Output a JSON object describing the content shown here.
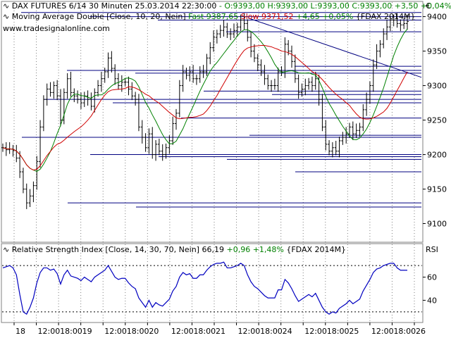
{
  "header": {
    "instrument": "DAX FUTURES 6/14 30 Minuten",
    "datetime": "25.03.2014 22:30:00",
    "ohlc": "- O:9393,00 H:9393,00 L:9393,00",
    "close_change": "C:9393,00 +3,50 +0,04%",
    "ma_title": "Moving Average Double [Close, 10, 20, Nein]",
    "ma_fast": "Fast 9387,65",
    "ma_slow": "Slow 9371,52",
    "ma_change": "+4,65 +0,05%",
    "ma_symbol": "{FDAX 2014M}",
    "website": "www.tradesignalonline.com",
    "currency": "€"
  },
  "rsi_header": {
    "title": "Relative Strength Index [Close, 14, 30, 70, Nein]",
    "value": "66,19",
    "change": "+0,96 +1,48%",
    "symbol": "{FDAX 2014M}",
    "axis_label": "RSI"
  },
  "colors": {
    "price": "#000000",
    "fast_ma": "#008000",
    "slow_ma": "#d00000",
    "rsi": "#0000c0",
    "levels": "#000080",
    "up_text": "#008000",
    "down_text": "#d00000"
  },
  "chart_data": [
    {
      "type": "candlestick",
      "ylim": [
        9075,
        9420
      ],
      "y_ticks": [
        9100,
        9150,
        9200,
        9250,
        9300,
        9350,
        9400
      ],
      "x_ticks": [
        "18",
        "12:00",
        "18:00",
        "19",
        "12:00",
        "18:00",
        "20",
        "12:00",
        "18:00",
        "21",
        "12:00",
        "18:00",
        "24",
        "12:00",
        "18:00",
        "25",
        "12:00",
        "18:00",
        "26"
      ],
      "series": [
        {
          "name": "Close",
          "values": [
            9210,
            9207,
            9208,
            9206,
            9195,
            9175,
            9150,
            9130,
            9140,
            9155,
            9190,
            9240,
            9280,
            9295,
            9290,
            9300,
            9285,
            9250,
            9290,
            9310,
            9290,
            9285,
            9280,
            9275,
            9285,
            9280,
            9270,
            9290,
            9300,
            9310,
            9320,
            9340,
            9325,
            9310,
            9300,
            9305,
            9305,
            9295,
            9285,
            9280,
            9240,
            9225,
            9210,
            9230,
            9200,
            9215,
            9205,
            9200,
            9210,
            9220,
            9245,
            9260,
            9300,
            9320,
            9315,
            9320,
            9310,
            9310,
            9320,
            9320,
            9340,
            9355,
            9370,
            9375,
            9380,
            9385,
            9375,
            9375,
            9380,
            9385,
            9395,
            9390,
            9370,
            9350,
            9340,
            9330,
            9320,
            9310,
            9300,
            9300,
            9300,
            9320,
            9320,
            9360,
            9350,
            9335,
            9310,
            9290,
            9295,
            9300,
            9305,
            9300,
            9310,
            9280,
            9240,
            9215,
            9205,
            9210,
            9205,
            9220,
            9225,
            9230,
            9240,
            9230,
            9235,
            9240,
            9265,
            9280,
            9300,
            9330,
            9350,
            9360,
            9375,
            9385,
            9395,
            9395,
            9390,
            9388,
            9390,
            9393
          ]
        },
        {
          "name": "Fast 9387,65",
          "period": 10
        },
        {
          "name": "Slow 9371,52",
          "period": 20
        }
      ],
      "support_resistance_levels": [
        9406,
        9400,
        9395,
        9378,
        9328,
        9322,
        9318,
        9292,
        9287,
        9280,
        9275,
        9253,
        9228,
        9225,
        9200,
        9197,
        9193,
        9175,
        9130,
        9124
      ],
      "trendline": {
        "from": 9398,
        "to": 9312
      }
    },
    {
      "type": "line",
      "ylim": [
        22,
        78
      ],
      "y_ticks": [
        40,
        60
      ],
      "guide_levels": [
        30,
        70
      ],
      "series": [
        {
          "name": "RSI",
          "values": [
            68,
            69,
            70,
            68,
            62,
            45,
            30,
            28,
            34,
            42,
            55,
            64,
            68,
            68,
            66,
            67,
            63,
            54,
            62,
            66,
            61,
            60,
            59,
            57,
            60,
            58,
            56,
            60,
            62,
            64,
            66,
            70,
            65,
            60,
            58,
            59,
            59,
            55,
            52,
            50,
            42,
            38,
            34,
            40,
            34,
            38,
            36,
            35,
            38,
            41,
            48,
            52,
            60,
            64,
            62,
            63,
            59,
            59,
            62,
            62,
            66,
            69,
            71,
            72,
            72,
            73,
            68,
            68,
            69,
            70,
            72,
            70,
            62,
            56,
            52,
            50,
            47,
            44,
            42,
            42,
            42,
            49,
            49,
            58,
            55,
            50,
            44,
            39,
            41,
            43,
            45,
            43,
            46,
            40,
            34,
            30,
            28,
            30,
            29,
            33,
            35,
            37,
            40,
            37,
            39,
            41,
            48,
            53,
            58,
            64,
            67,
            68,
            70,
            71,
            72,
            72,
            68,
            66,
            66,
            66
          ]
        }
      ]
    }
  ]
}
